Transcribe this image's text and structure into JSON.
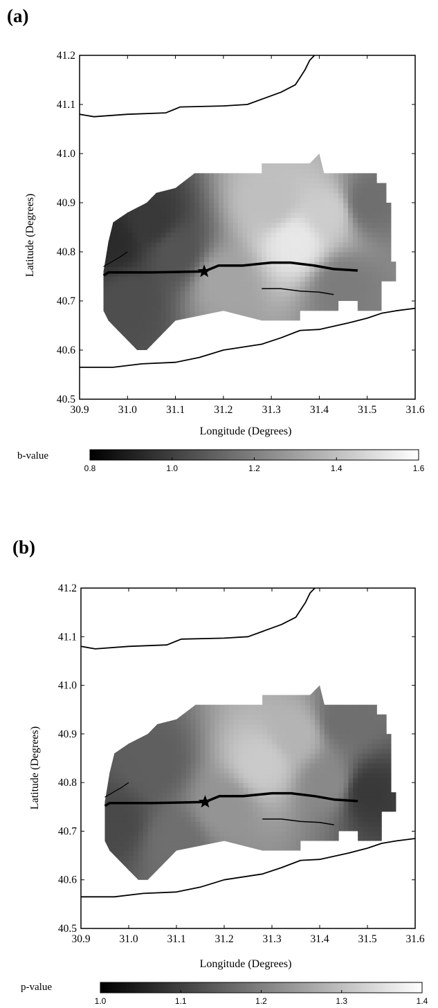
{
  "chart_data": [
    {
      "type": "heatmap",
      "panel_label": "(a)",
      "title": "",
      "xlabel": "Longitude (Degrees)",
      "ylabel": "Latitude (Degrees)",
      "xlim": [
        30.9,
        31.6
      ],
      "ylim": [
        40.5,
        41.2
      ],
      "xticks": [
        "30.9",
        "31.0",
        "31.1",
        "31.2",
        "31.3",
        "31.4",
        "31.5",
        "31.6"
      ],
      "yticks": [
        "40.5",
        "40.6",
        "40.7",
        "40.8",
        "40.9",
        "41.0",
        "41.1",
        "41.2"
      ],
      "colorbar": {
        "label": "b-value",
        "range": [
          0.8,
          1.6
        ],
        "ticks": [
          "0.8",
          "1.0",
          "1.2",
          "1.4",
          "1.6"
        ],
        "colors": [
          "#000000",
          "#ffffff"
        ]
      },
      "epicenter": {
        "lon": 31.16,
        "lat": 40.76,
        "marker": "star"
      },
      "field": {
        "description_points": [
          {
            "lon": 30.97,
            "lat": 40.82,
            "value": 0.85
          },
          {
            "lon": 31.05,
            "lat": 40.86,
            "value": 0.9
          },
          {
            "lon": 31.0,
            "lat": 40.7,
            "value": 0.98
          },
          {
            "lon": 31.1,
            "lat": 40.8,
            "value": 1.0
          },
          {
            "lon": 31.2,
            "lat": 40.74,
            "value": 1.3
          },
          {
            "lon": 31.3,
            "lat": 40.9,
            "value": 1.4
          },
          {
            "lon": 31.35,
            "lat": 40.82,
            "value": 1.55
          },
          {
            "lon": 31.42,
            "lat": 40.88,
            "value": 1.45
          },
          {
            "lon": 31.5,
            "lat": 40.9,
            "value": 1.1
          },
          {
            "lon": 31.45,
            "lat": 40.73,
            "value": 1.15
          }
        ]
      }
    },
    {
      "type": "heatmap",
      "panel_label": "(b)",
      "title": "",
      "xlabel": "Longitude (Degrees)",
      "ylabel": "Latitude (Degrees)",
      "xlim": [
        30.9,
        31.6
      ],
      "ylim": [
        40.5,
        41.2
      ],
      "xticks": [
        "30.9",
        "31.0",
        "31.1",
        "31.2",
        "31.3",
        "31.4",
        "31.5",
        "31.6"
      ],
      "yticks": [
        "40.5",
        "40.6",
        "40.7",
        "40.8",
        "40.9",
        "41.0",
        "41.1",
        "41.2"
      ],
      "colorbar": {
        "label": "p-value",
        "range": [
          1.0,
          1.4
        ],
        "ticks": [
          "1.0",
          "1.1",
          "1.2",
          "1.3",
          "1.4"
        ],
        "colors": [
          "#000000",
          "#ffffff"
        ]
      },
      "epicenter": {
        "lon": 31.16,
        "lat": 40.76,
        "marker": "star"
      },
      "field": {
        "description_points": [
          {
            "lon": 30.97,
            "lat": 40.72,
            "value": 1.08
          },
          {
            "lon": 31.05,
            "lat": 40.84,
            "value": 1.12
          },
          {
            "lon": 31.1,
            "lat": 40.68,
            "value": 1.15
          },
          {
            "lon": 31.2,
            "lat": 40.75,
            "value": 1.22
          },
          {
            "lon": 31.28,
            "lat": 40.84,
            "value": 1.32
          },
          {
            "lon": 31.35,
            "lat": 40.9,
            "value": 1.28
          },
          {
            "lon": 31.42,
            "lat": 40.8,
            "value": 1.2
          },
          {
            "lon": 31.5,
            "lat": 40.78,
            "value": 1.05
          },
          {
            "lon": 31.45,
            "lat": 40.93,
            "value": 1.15
          }
        ]
      }
    }
  ]
}
